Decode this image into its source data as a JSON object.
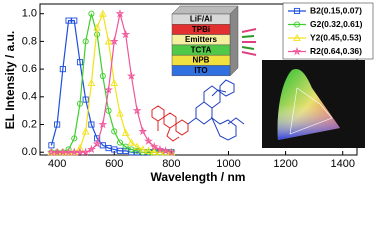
{
  "chart_data": {
    "type": "line",
    "xlabel": "Wavelength / nm",
    "ylabel": "EL Intensity / a.u.",
    "x": [
      380,
      400,
      420,
      440,
      460,
      480,
      500,
      520,
      540,
      560,
      580,
      600,
      620,
      640,
      660,
      680,
      700,
      720,
      740,
      760,
      780,
      800
    ],
    "series": [
      {
        "name": "B2(0.15,0.07)",
        "color": "#1f4fe0",
        "marker": "square",
        "values": [
          0.05,
          0.2,
          0.6,
          0.95,
          0.95,
          0.65,
          0.38,
          0.2,
          0.1,
          0.05,
          0.03,
          0.02,
          0.01,
          0.01,
          0,
          0,
          0,
          0,
          0,
          0,
          0,
          0
        ]
      },
      {
        "name": "G2(0.32,0.61)",
        "color": "#3ecf2a",
        "marker": "circle",
        "values": [
          0,
          0,
          0,
          0.02,
          0.1,
          0.35,
          0.8,
          1.0,
          0.85,
          0.55,
          0.3,
          0.15,
          0.07,
          0.04,
          0.02,
          0.01,
          0,
          0,
          0,
          0,
          0,
          0
        ]
      },
      {
        "name": "Y2(0.45,0.53)",
        "color": "#f2e21a",
        "marker": "triangle",
        "values": [
          0,
          0,
          0,
          0,
          0,
          0.03,
          0.15,
          0.5,
          0.9,
          1.0,
          0.8,
          0.5,
          0.28,
          0.14,
          0.07,
          0.04,
          0.02,
          0.01,
          0,
          0,
          0,
          0
        ]
      },
      {
        "name": "R2(0.64,0.36)",
        "color": "#f0559a",
        "marker": "star",
        "values": [
          0,
          0,
          0,
          0,
          0,
          0,
          0,
          0.02,
          0.06,
          0.2,
          0.45,
          0.8,
          1.0,
          0.85,
          0.55,
          0.3,
          0.15,
          0.08,
          0.04,
          0.02,
          0.01,
          0
        ]
      }
    ],
    "xlim": [
      340,
      1450
    ],
    "ylim": [
      -0.02,
      1.07
    ],
    "xticks": [
      400,
      600,
      800,
      1000,
      1200,
      1400
    ],
    "yticks": [
      {
        "value": 0,
        "label": "0.0"
      },
      0.2,
      0.4,
      0.6,
      0.8,
      {
        "value": 1,
        "label": "1.0"
      }
    ],
    "legend": "upper right",
    "device_layers": [
      "LiF/Al",
      "TPBi",
      "Emitters",
      "TCTA",
      "NPB",
      "ITO"
    ]
  }
}
